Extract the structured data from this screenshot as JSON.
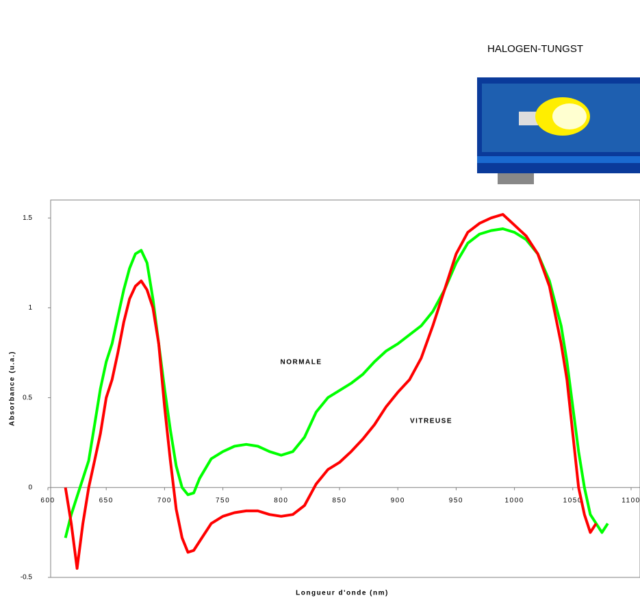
{
  "chart_data": {
    "type": "line",
    "lamp_label": "HALOGEN-TUNGST",
    "xlabel": "Longueur d'onde (nm)",
    "ylabel": "Absorbance (u.a.)",
    "annotations": [
      "NORMALE",
      "VITREUSE"
    ],
    "xlim": [
      600,
      1100
    ],
    "ylim": [
      -0.5,
      1.6
    ],
    "xticks": [
      600,
      650,
      700,
      750,
      800,
      850,
      900,
      950,
      1000,
      1050,
      1100
    ],
    "yticks": [
      1.5,
      1,
      0.5,
      0,
      -0.5
    ],
    "x": [
      615,
      620,
      625,
      630,
      635,
      640,
      645,
      650,
      655,
      660,
      665,
      670,
      675,
      680,
      685,
      690,
      695,
      700,
      705,
      710,
      715,
      720,
      725,
      730,
      740,
      750,
      760,
      770,
      780,
      790,
      800,
      810,
      820,
      830,
      840,
      850,
      860,
      870,
      880,
      890,
      900,
      910,
      920,
      930,
      940,
      950,
      960,
      970,
      980,
      990,
      1000,
      1010,
      1020,
      1030,
      1040,
      1045,
      1050,
      1055,
      1060,
      1065,
      1070,
      1075,
      1080
    ],
    "series": [
      {
        "name": "NORMALE",
        "color": "#00ff00",
        "values": [
          -0.28,
          -0.15,
          -0.05,
          0.05,
          0.15,
          0.35,
          0.55,
          0.7,
          0.8,
          0.95,
          1.1,
          1.22,
          1.3,
          1.32,
          1.25,
          1.05,
          0.8,
          0.55,
          0.32,
          0.12,
          0.0,
          -0.04,
          -0.03,
          0.05,
          0.16,
          0.2,
          0.23,
          0.24,
          0.23,
          0.2,
          0.18,
          0.2,
          0.28,
          0.42,
          0.5,
          0.54,
          0.58,
          0.63,
          0.7,
          0.76,
          0.8,
          0.85,
          0.9,
          0.98,
          1.1,
          1.25,
          1.36,
          1.41,
          1.43,
          1.44,
          1.42,
          1.38,
          1.3,
          1.15,
          0.9,
          0.7,
          0.45,
          0.2,
          0.0,
          -0.15,
          -0.2,
          -0.25,
          -0.2
        ]
      },
      {
        "name": "VITREUSE",
        "color": "#ff0000",
        "values": [
          0,
          -0.2,
          -0.45,
          -0.2,
          0.0,
          0.15,
          0.3,
          0.5,
          0.6,
          0.75,
          0.92,
          1.05,
          1.12,
          1.15,
          1.1,
          1.0,
          0.8,
          0.45,
          0.15,
          -0.12,
          -0.28,
          -0.36,
          -0.35,
          -0.3,
          -0.2,
          -0.16,
          -0.14,
          -0.13,
          -0.13,
          -0.15,
          -0.16,
          -0.15,
          -0.1,
          0.02,
          0.1,
          0.14,
          0.2,
          0.27,
          0.35,
          0.45,
          0.53,
          0.6,
          0.72,
          0.9,
          1.1,
          1.3,
          1.42,
          1.47,
          1.5,
          1.52,
          1.46,
          1.4,
          1.3,
          1.12,
          0.8,
          0.6,
          0.3,
          0.0,
          -0.15,
          -0.25,
          -0.2,
          null,
          null
        ]
      }
    ]
  }
}
